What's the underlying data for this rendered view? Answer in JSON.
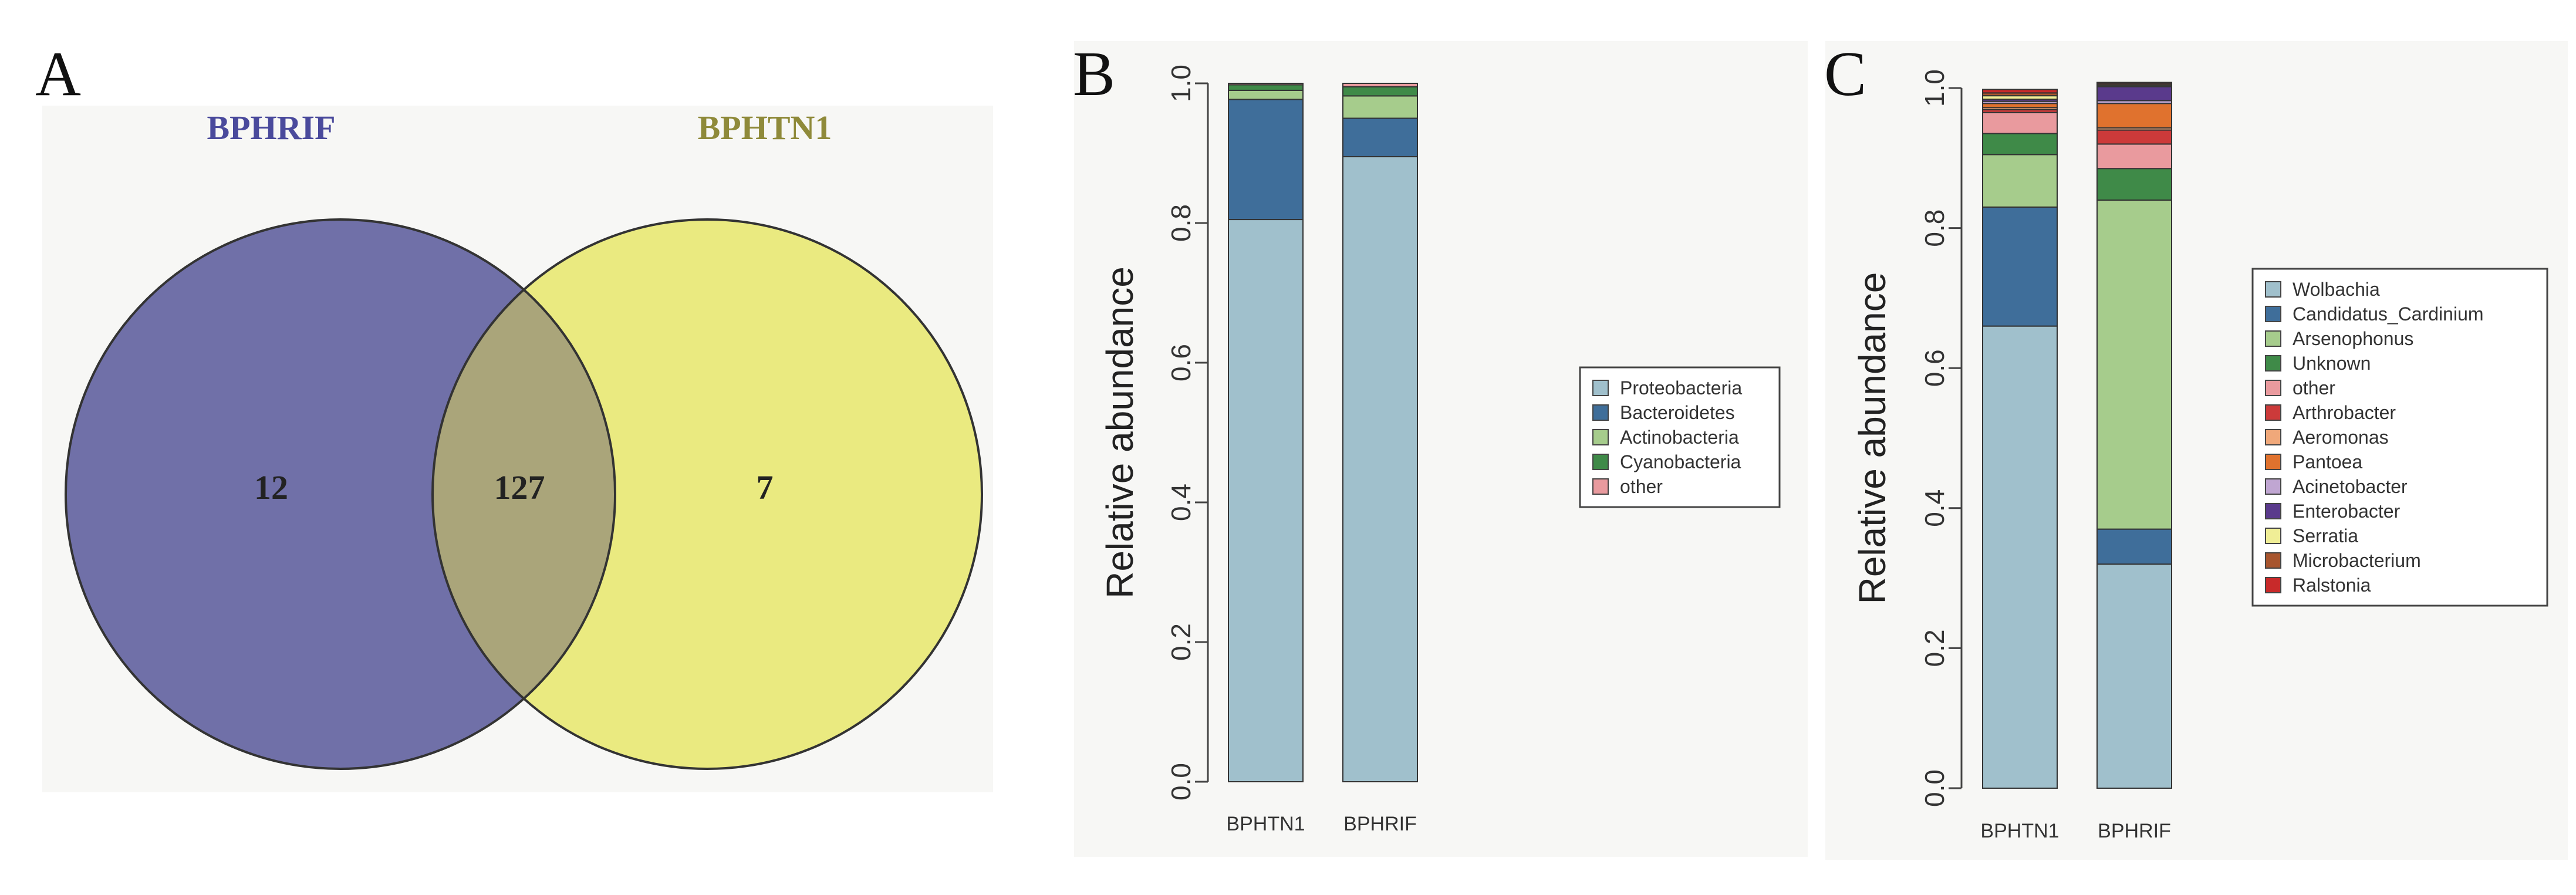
{
  "panel_labels": {
    "a": "A",
    "b": "B",
    "c": "C"
  },
  "colors": {
    "venn_left": "#7070a8",
    "venn_right": "#eaea80",
    "venn_overlap": "#aaa57a",
    "venn_left_title": "#4a4a9c",
    "venn_right_title": "#8f8a3a",
    "panel_bg": "#f7f7f5"
  },
  "chart_data": [
    {
      "type": "venn",
      "sets": [
        "BPHRIF",
        "BPHTN1"
      ],
      "only_left": "12",
      "intersection": "127",
      "only_right": "7"
    },
    {
      "type": "bar",
      "stacked": true,
      "ylabel": "Relative abundance",
      "ylim": [
        0,
        1
      ],
      "yticks": [
        "0.0",
        "0.2",
        "0.4",
        "0.6",
        "0.8",
        "1.0"
      ],
      "categories": [
        "BPHTN1",
        "BPHRIF"
      ],
      "legend_position": "right",
      "series": [
        {
          "name": "Proteobacteria",
          "color": "#a0c0cc",
          "values": [
            0.805,
            0.895
          ]
        },
        {
          "name": "Bacteroidetes",
          "color": "#3f6e9a",
          "values": [
            0.172,
            0.055
          ]
        },
        {
          "name": "Actinobacteria",
          "color": "#a6cc8c",
          "values": [
            0.013,
            0.032
          ]
        },
        {
          "name": "Cyanobacteria",
          "color": "#3f8a48",
          "values": [
            0.008,
            0.013
          ]
        },
        {
          "name": "other",
          "color": "#e99a9e",
          "values": [
            0.002,
            0.005
          ]
        }
      ]
    },
    {
      "type": "bar",
      "stacked": true,
      "ylabel": "Relative abundance",
      "ylim": [
        0,
        1
      ],
      "yticks": [
        "0.0",
        "0.2",
        "0.4",
        "0.6",
        "0.8",
        "1.0"
      ],
      "categories": [
        "BPHTN1",
        "BPHRIF"
      ],
      "legend_position": "right",
      "series": [
        {
          "name": "Wolbachia",
          "color": "#a0c0cc",
          "values": [
            0.66,
            0.32
          ]
        },
        {
          "name": "Candidatus_Cardinium",
          "color": "#3f6e9a",
          "values": [
            0.17,
            0.05
          ]
        },
        {
          "name": "Arsenophonus",
          "color": "#a6cc8c",
          "values": [
            0.075,
            0.47
          ]
        },
        {
          "name": "Unknown",
          "color": "#3f8a48",
          "values": [
            0.03,
            0.045
          ]
        },
        {
          "name": "other",
          "color": "#e99a9e",
          "values": [
            0.03,
            0.035
          ]
        },
        {
          "name": "Arthrobacter",
          "color": "#cc3a3a",
          "values": [
            0.004,
            0.02
          ]
        },
        {
          "name": "Aeromonas",
          "color": "#f0a87a",
          "values": [
            0.003,
            0.003
          ]
        },
        {
          "name": "Pantoea",
          "color": "#e0722e",
          "values": [
            0.006,
            0.035
          ]
        },
        {
          "name": "Acinetobacter",
          "color": "#c0a6d2",
          "values": [
            0.003,
            0.004
          ]
        },
        {
          "name": "Enterobacter",
          "color": "#5a3a8c",
          "values": [
            0.003,
            0.02
          ]
        },
        {
          "name": "Serratia",
          "color": "#f0ee96",
          "values": [
            0.005,
            0.002
          ]
        },
        {
          "name": "Microbacterium",
          "color": "#a8552e",
          "values": [
            0.004,
            0.002
          ]
        },
        {
          "name": "Ralstonia",
          "color": "#c82a2a",
          "values": [
            0.005,
            0.002
          ]
        }
      ]
    }
  ]
}
